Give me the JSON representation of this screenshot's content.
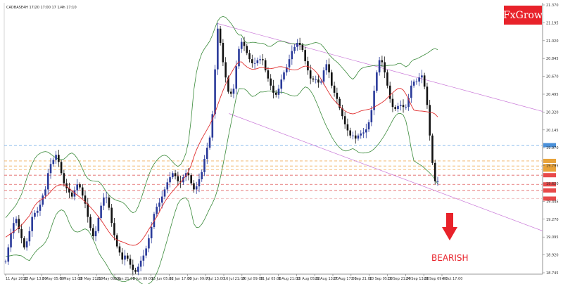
{
  "header": {
    "symbol_info": "CADBASE4H 17/20 17:00 17 1/4h 17:10"
  },
  "brand": {
    "label": "FxGrow",
    "color": "#e8222a"
  },
  "signal": {
    "label": "BEARISH",
    "color": "#e8222a",
    "arrow": "down-arrow-icon"
  },
  "chart_data": {
    "type": "candlestick",
    "grid": false,
    "legend": "none",
    "price_labels": [
      "21.370",
      "21.195",
      "21.020",
      "20.845",
      "20.670",
      "20.495",
      "20.320",
      "20.145",
      "19.970",
      "19.795",
      "19.620",
      "19.445",
      "19.270",
      "19.095",
      "18.920",
      "18.745"
    ],
    "date_labels": [
      "11 Apr 2018",
      "22 Apr 13:00",
      "3 May 05:00",
      "9 May 13:00",
      "18 May 21:00",
      "21 May 09:00",
      "1 Jun 21:00",
      "8 Jun 09:00",
      "15 Jun 05:00",
      "22 Jun 17:00",
      "30 Jun 09:00",
      "7 Jul 13:00",
      "16 Jul 21:00",
      "20 Jul 09:00",
      "31 Jul 05:00",
      "8 Aug 21:00",
      "15 Aug 05:00",
      "21 Aug 13:00",
      "27 Aug 17:00",
      "3 Sep 21:00",
      "10 Sep 05:00",
      "18 Sep 21:00",
      "24 Sep 13:00",
      "28 Sep 09:00",
      "4 Oct 17:00"
    ],
    "price_range": [
      18.745,
      21.37
    ],
    "close_series": [
      18.84,
      18.98,
      19.12,
      19.22,
      19.26,
      19.16,
      19.07,
      18.98,
      19.04,
      19.14,
      19.28,
      19.32,
      19.34,
      19.4,
      19.49,
      19.55,
      19.71,
      19.8,
      19.84,
      19.89,
      19.82,
      19.71,
      19.61,
      19.56,
      19.52,
      19.48,
      19.54,
      19.6,
      19.57,
      19.49,
      19.41,
      19.28,
      19.17,
      19.09,
      19.14,
      19.27,
      19.39,
      19.47,
      19.47,
      19.37,
      19.22,
      19.1,
      18.99,
      18.93,
      18.86,
      18.9,
      18.87,
      18.81,
      18.76,
      18.74,
      18.79,
      18.85,
      18.9,
      18.97,
      19.07,
      19.18,
      19.31,
      19.38,
      19.42,
      19.48,
      19.55,
      19.62,
      19.67,
      19.71,
      19.68,
      19.63,
      19.62,
      19.67,
      19.71,
      19.69,
      19.61,
      19.55,
      19.58,
      19.65,
      19.72,
      19.85,
      19.96,
      20.06,
      20.29,
      20.73,
      21.13,
      20.99,
      20.8,
      20.65,
      20.51,
      20.49,
      20.54,
      20.76,
      20.93,
      21.0,
      20.96,
      20.89,
      20.83,
      20.79,
      20.79,
      20.82,
      20.83,
      20.82,
      20.72,
      20.64,
      20.57,
      20.5,
      20.48,
      20.54,
      20.63,
      20.7,
      20.75,
      20.83,
      20.91,
      20.95,
      20.99,
      20.97,
      20.92,
      20.81,
      20.72,
      20.64,
      20.63,
      20.63,
      20.6,
      20.61,
      20.72,
      20.78,
      20.7,
      20.57,
      20.5,
      20.44,
      20.35,
      20.27,
      20.19,
      20.13,
      20.08,
      20.08,
      20.05,
      20.08,
      20.1,
      20.11,
      20.14,
      20.21,
      20.33,
      20.52,
      20.7,
      20.82,
      20.8,
      20.7,
      20.57,
      20.44,
      20.36,
      20.34,
      20.37,
      20.38,
      20.36,
      20.36,
      20.45,
      20.57,
      20.61,
      20.61,
      20.65,
      20.67,
      20.56,
      20.38,
      20.08,
      19.81,
      19.63,
      19.63
    ],
    "resistance_levels": [
      19.985,
      19.83,
      19.78,
      19.745,
      19.69
    ],
    "support_levels": [
      19.6,
      19.54,
      19.46
    ],
    "annotations": [
      "FxGrow",
      "BEARISH"
    ]
  }
}
